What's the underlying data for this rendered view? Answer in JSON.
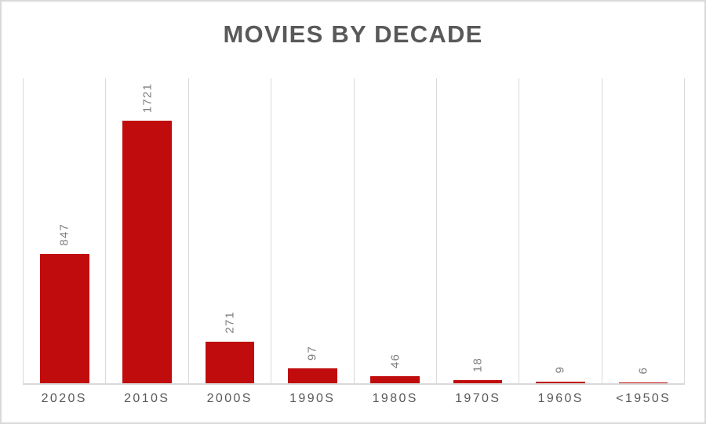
{
  "title": "MOVIES BY DECADE",
  "colors": {
    "background": "#FFFFFF",
    "border": "#D9D9D9",
    "title": "#595959",
    "bar": "#C00C0C",
    "value_label": "#7F7F7F",
    "axis_label": "#595959",
    "gridline": "#D9D9D9",
    "baseline": "#D9D9D9"
  },
  "chart_data": {
    "type": "bar",
    "title": "MOVIES BY DECADE",
    "categories": [
      "2020S",
      "2010S",
      "2000S",
      "1990S",
      "1980S",
      "1970S",
      "1960S",
      "<1950S"
    ],
    "values": [
      847,
      1721,
      271,
      97,
      46,
      18,
      9,
      6
    ],
    "xlabel": "",
    "ylabel": "",
    "ylim": [
      0,
      2000
    ],
    "grid": "vertical-category-separators-only",
    "y_axis_ticks": "hidden",
    "legend": "none",
    "data_labels": "rotated-90-above-bars"
  }
}
